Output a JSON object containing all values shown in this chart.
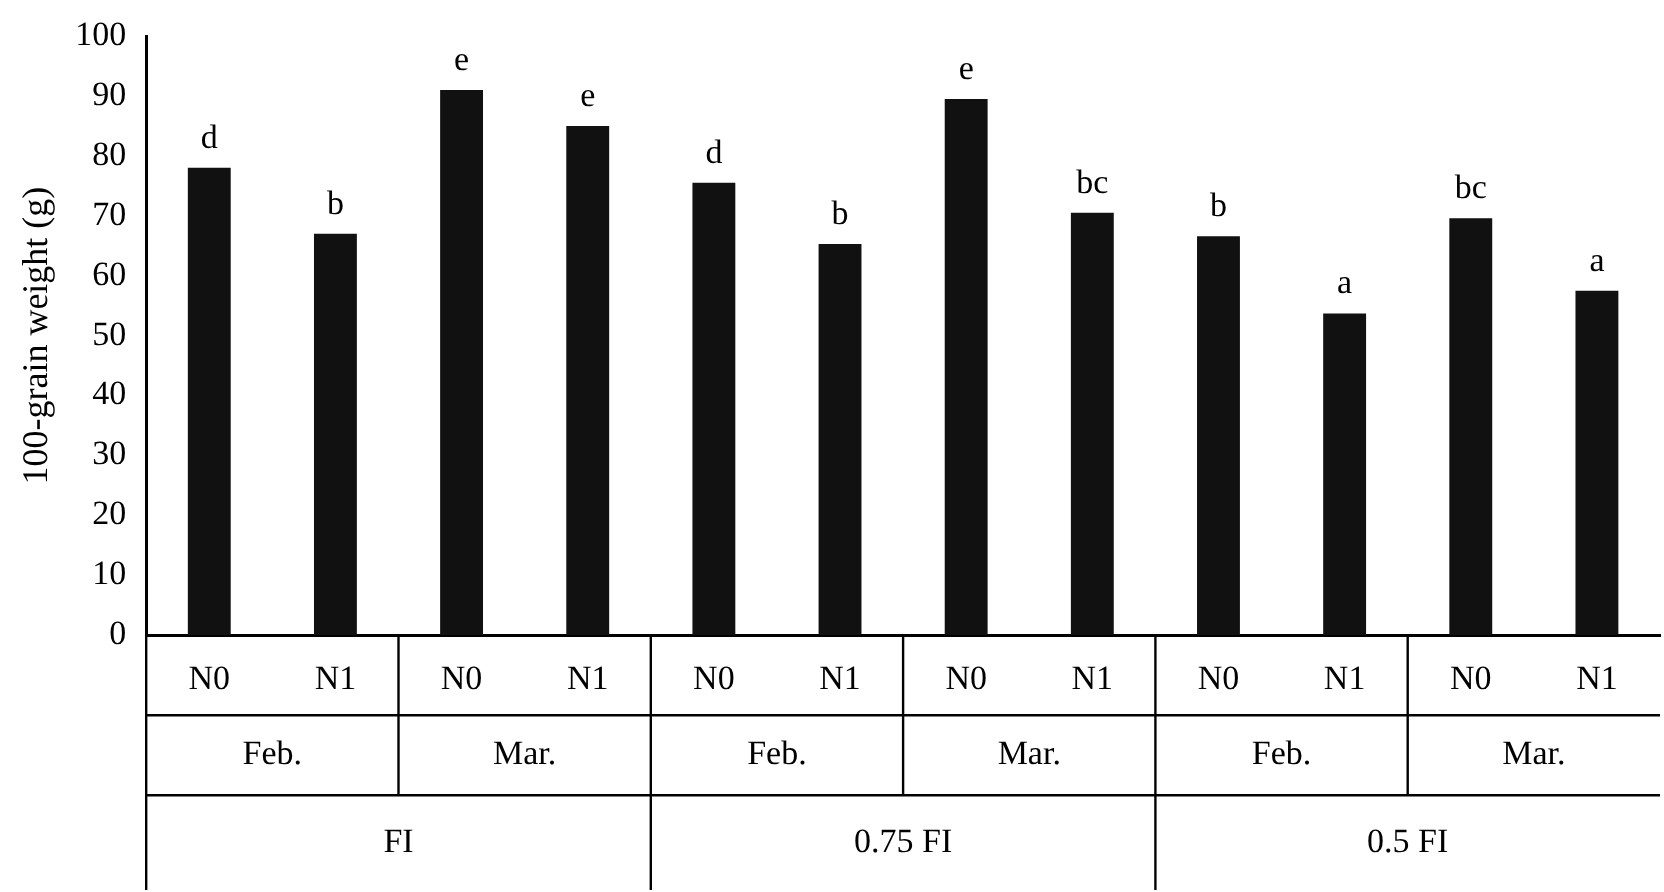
{
  "chart_data": {
    "type": "bar",
    "ylabel": "100-grain weight (g)",
    "categories": [
      "N0",
      "N1",
      "N0",
      "N1",
      "N0",
      "N1",
      "N0",
      "N1",
      "N0",
      "N1",
      "N0",
      "N1"
    ],
    "values": [
      78,
      67,
      91,
      85,
      75.5,
      65.3,
      89.5,
      70.5,
      66.6,
      53.7,
      69.6,
      57.5
    ],
    "color": "#111111",
    "value_labels": [
      "d",
      "b",
      "e",
      "e",
      "d",
      "b",
      "e",
      "bc",
      "b",
      "a",
      "bc",
      "a"
    ],
    "annotations": [
      "Feb.",
      "Mar.",
      "Feb.",
      "Mar.",
      "Feb.",
      "Mar.",
      "FI",
      "0.75 FI",
      "0.5 FI"
    ],
    "ylim": [
      0,
      100
    ],
    "yticks": [
      0,
      10,
      20,
      30,
      40,
      50,
      60,
      70,
      80,
      90,
      100
    ],
    "grid": false,
    "legend": false
  }
}
